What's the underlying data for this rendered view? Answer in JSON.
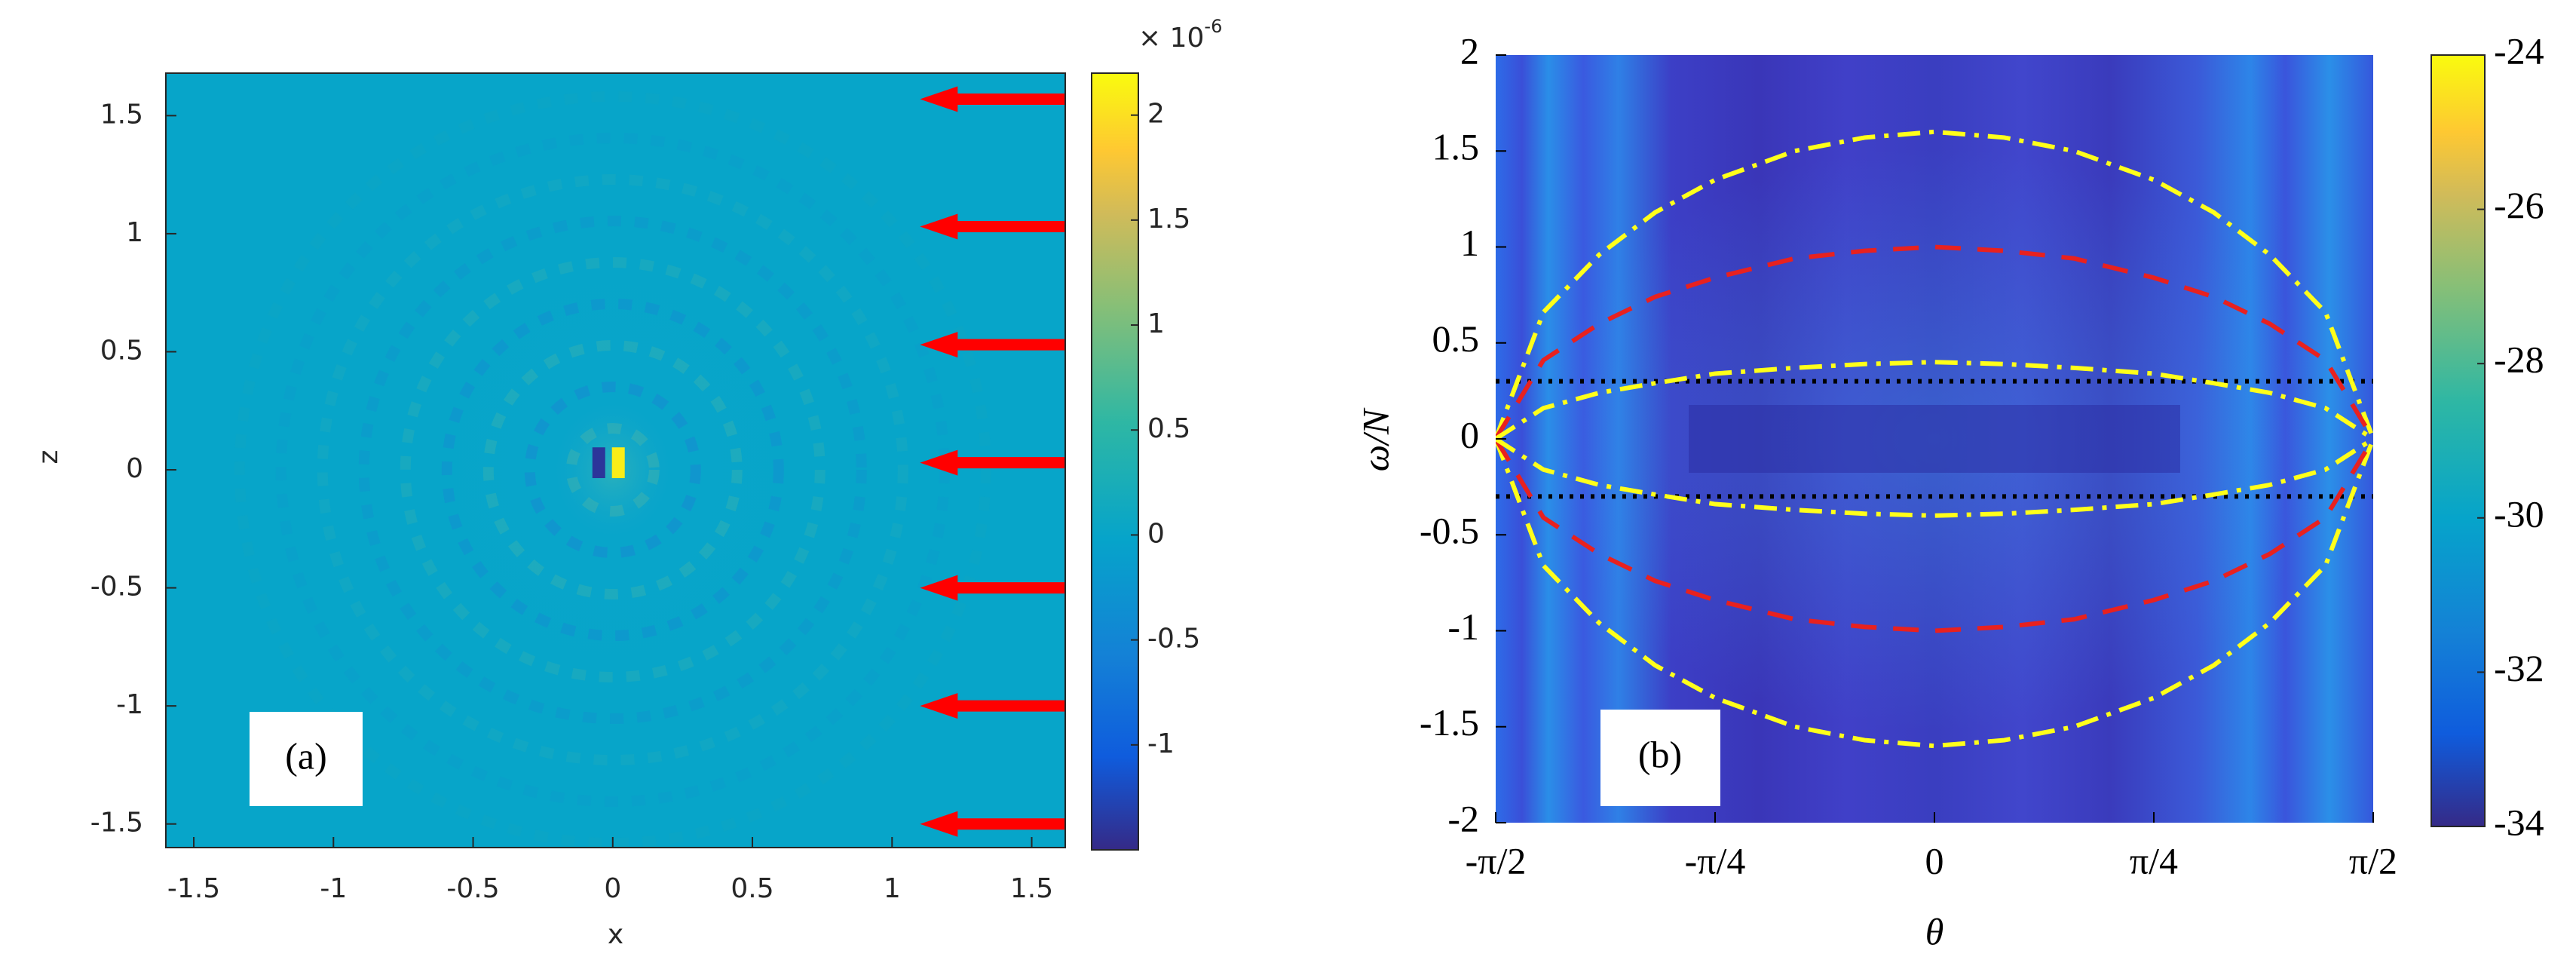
{
  "chart_data": [
    {
      "type": "heatmap",
      "xlabel": "x",
      "ylabel": "z",
      "xlim": [
        -1.6,
        1.62
      ],
      "ylim": [
        -1.6,
        1.68
      ],
      "xticks": [
        -1.5,
        -1,
        -0.5,
        0,
        0.5,
        1,
        1.5
      ],
      "yticks": [
        -1.5,
        -1,
        -0.5,
        0,
        0.5,
        1,
        1.5
      ],
      "field_value": 0,
      "points": [
        {
          "x": 0.02,
          "z": 0.03,
          "value": 2.1
        },
        {
          "x": -0.05,
          "z": 0.03,
          "value": -1.4
        }
      ],
      "colorbar": {
        "lim": [
          -1.5,
          2.2
        ],
        "ticks": [
          -1,
          -0.5,
          0,
          0.5,
          1,
          1.5,
          2
        ],
        "multiplier": "× 10",
        "exponent": "-6"
      },
      "arrows": {
        "color": "#ff0000",
        "x_start": 1.62,
        "x_end": 1.1,
        "z": [
          1.57,
          1.03,
          0.53,
          0.03,
          -0.5,
          -1.0,
          -1.5
        ]
      },
      "annotation": "(a)"
    },
    {
      "type": "heatmap",
      "xlabel": "θ",
      "ylabel": "ω/N",
      "xlim": [
        -1.5708,
        1.5708
      ],
      "ylim": [
        -2,
        2
      ],
      "xticks": [
        {
          "value": -1.5708,
          "label": "-π/2"
        },
        {
          "value": -0.7854,
          "label": "-π/4"
        },
        0,
        {
          "value": 0.7854,
          "label": "π/4"
        },
        {
          "value": 1.5708,
          "label": "π/2"
        }
      ],
      "yticks": [
        -2,
        -1.5,
        -1,
        -0.5,
        0,
        0.5,
        1,
        1.5,
        2
      ],
      "colorbar": {
        "lim": [
          -34,
          -24
        ],
        "ticks": [
          -34,
          -32,
          -30,
          -28,
          -26,
          -24
        ]
      },
      "x": [
        -1.5708,
        -1.4,
        -1.2,
        -1,
        -0.785,
        -0.5,
        -0.25,
        0,
        0.25,
        0.5,
        0.785,
        1,
        1.2,
        1.4,
        1.5708
      ],
      "curves": [
        {
          "color": "#ffff1a",
          "style": "dashdot",
          "values": [
            0,
            0.66,
            0.96,
            1.18,
            1.35,
            1.5,
            1.57,
            1.6,
            1.57,
            1.5,
            1.35,
            1.18,
            0.96,
            0.66,
            0
          ]
        },
        {
          "color": "#ffff1a",
          "style": "dashdot",
          "values": [
            0,
            -0.66,
            -0.96,
            -1.18,
            -1.35,
            -1.5,
            -1.57,
            -1.6,
            -1.57,
            -1.5,
            -1.35,
            -1.18,
            -0.96,
            -0.66,
            0
          ]
        },
        {
          "color": "#e8211f",
          "style": "dashed",
          "values": [
            0,
            0.41,
            0.6,
            0.74,
            0.84,
            0.94,
            0.98,
            1,
            0.98,
            0.94,
            0.84,
            0.74,
            0.6,
            0.41,
            0
          ]
        },
        {
          "color": "#e8211f",
          "style": "dashed",
          "values": [
            0,
            -0.41,
            -0.6,
            -0.74,
            -0.84,
            -0.94,
            -0.98,
            -1,
            -0.98,
            -0.94,
            -0.84,
            -0.74,
            -0.6,
            -0.41,
            0
          ]
        },
        {
          "color": "#ffff1a",
          "style": "dashdot",
          "values": [
            0,
            0.16,
            0.24,
            0.29,
            0.34,
            0.37,
            0.39,
            0.4,
            0.39,
            0.37,
            0.34,
            0.29,
            0.24,
            0.16,
            0
          ]
        },
        {
          "color": "#ffff1a",
          "style": "dashdot",
          "values": [
            0,
            -0.16,
            -0.24,
            -0.29,
            -0.34,
            -0.37,
            -0.39,
            -0.4,
            -0.39,
            -0.37,
            -0.34,
            -0.29,
            -0.24,
            -0.16,
            0
          ]
        }
      ],
      "hlines": {
        "color": "#000000",
        "y": [
          0.3,
          -0.3
        ]
      },
      "annotation": "(b)"
    }
  ]
}
